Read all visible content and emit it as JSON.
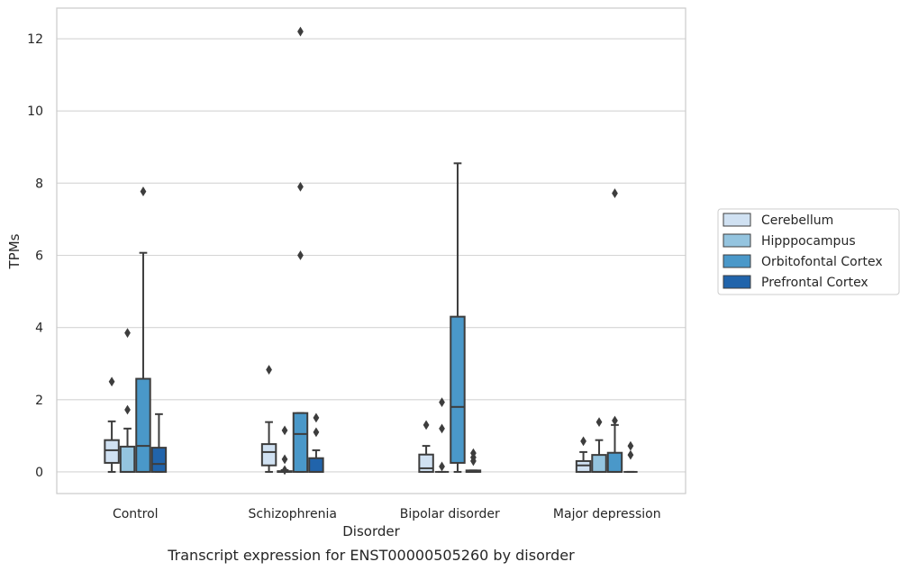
{
  "caption": "Transcript expression for ENST00000505260 by disorder",
  "chart_data": {
    "type": "box",
    "title": "",
    "xlabel": "Disorder",
    "ylabel": "TPMs",
    "ylim": [
      -0.6,
      12.85
    ],
    "yticks": [
      0,
      2,
      4,
      6,
      8,
      10,
      12
    ],
    "grid": true,
    "legend_position": "right",
    "categories": [
      "Control",
      "Schizophrenia",
      "Bipolar disorder",
      "Major depression"
    ],
    "series": [
      {
        "name": "Cerebellum",
        "color": "#d0e1f2",
        "boxes": [
          {
            "q1": 0.25,
            "median": 0.6,
            "q3": 0.88,
            "whisker_low": 0.0,
            "whisker_high": 1.4,
            "outliers": [
              2.5
            ]
          },
          {
            "q1": 0.18,
            "median": 0.55,
            "q3": 0.77,
            "whisker_low": 0.0,
            "whisker_high": 1.38,
            "outliers": [
              2.83
            ]
          },
          {
            "q1": 0.0,
            "median": 0.1,
            "q3": 0.48,
            "whisker_low": 0.0,
            "whisker_high": 0.72,
            "outliers": [
              1.3
            ]
          },
          {
            "q1": 0.0,
            "median": 0.18,
            "q3": 0.3,
            "whisker_low": 0.0,
            "whisker_high": 0.55,
            "outliers": [
              0.85
            ]
          }
        ]
      },
      {
        "name": "Hipppocampus",
        "color": "#94c4df",
        "boxes": [
          {
            "q1": 0.0,
            "median": 0.0,
            "q3": 0.7,
            "whisker_low": 0.0,
            "whisker_high": 1.2,
            "outliers": [
              1.72,
              3.85
            ]
          },
          {
            "q1": 0.0,
            "median": 0.0,
            "q3": 0.02,
            "whisker_low": 0.0,
            "whisker_high": 0.05,
            "outliers": [
              0.05,
              0.35,
              1.15
            ]
          },
          {
            "q1": 0.0,
            "median": 0.0,
            "q3": 0.0,
            "whisker_low": 0.0,
            "whisker_high": 0.0,
            "outliers": [
              0.15,
              1.2,
              1.93
            ]
          },
          {
            "q1": 0.0,
            "median": 0.0,
            "q3": 0.47,
            "whisker_low": 0.0,
            "whisker_high": 0.88,
            "outliers": [
              1.38
            ]
          }
        ]
      },
      {
        "name": "Orbitofontal Cortex",
        "color": "#4a98c9",
        "boxes": [
          {
            "q1": 0.0,
            "median": 0.72,
            "q3": 2.58,
            "whisker_low": 0.0,
            "whisker_high": 6.07,
            "outliers": [
              7.77
            ]
          },
          {
            "q1": 0.0,
            "median": 1.05,
            "q3": 1.63,
            "whisker_low": 0.0,
            "whisker_high": 1.63,
            "outliers": [
              6.0,
              7.9,
              12.2
            ]
          },
          {
            "q1": 0.25,
            "median": 1.8,
            "q3": 4.3,
            "whisker_low": 0.0,
            "whisker_high": 8.55,
            "outliers": []
          },
          {
            "q1": 0.0,
            "median": 0.0,
            "q3": 0.53,
            "whisker_low": 0.0,
            "whisker_high": 1.3,
            "outliers": [
              1.42,
              7.72
            ]
          }
        ]
      },
      {
        "name": "Prefrontal Cortex",
        "color": "#2164ab",
        "boxes": [
          {
            "q1": 0.0,
            "median": 0.22,
            "q3": 0.67,
            "whisker_low": 0.0,
            "whisker_high": 1.6,
            "outliers": []
          },
          {
            "q1": 0.0,
            "median": 0.0,
            "q3": 0.38,
            "whisker_low": 0.0,
            "whisker_high": 0.6,
            "outliers": [
              1.1,
              1.5
            ]
          },
          {
            "q1": 0.0,
            "median": 0.0,
            "q3": 0.04,
            "whisker_low": 0.0,
            "whisker_high": 0.04,
            "outliers": [
              0.3,
              0.4,
              0.52
            ]
          },
          {
            "q1": 0.0,
            "median": 0.0,
            "q3": 0.0,
            "whisker_low": 0.0,
            "whisker_high": 0.0,
            "outliers": [
              0.47,
              0.72
            ]
          }
        ]
      }
    ]
  }
}
